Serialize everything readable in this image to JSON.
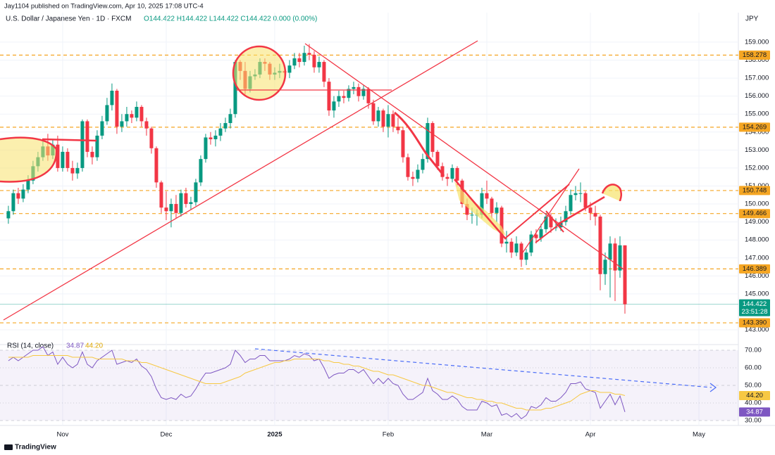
{
  "header": "Jay1104 published on TradingView.com, Apr 10, 2025 17:08 UTC-4",
  "footer": "TradingView",
  "chart_data": [
    {
      "type": "candlestick",
      "title": "U.S. Dollar / Japanese Yen · 1D · FXCM",
      "ohlc_legend": "O144.422 H144.422 L144.422 C144.422 0.000 (0.00%)",
      "currency": "JPY",
      "up_color": "#089981",
      "down_color": "#f23645",
      "grid": true,
      "xlim": [
        -1.7,
        148
      ],
      "xticks": [
        {
          "value": 11,
          "label": "Nov"
        },
        {
          "value": 32,
          "label": "Dec"
        },
        {
          "value": 54,
          "label": "2025"
        },
        {
          "value": 77,
          "label": "Feb"
        },
        {
          "value": 97,
          "label": "Mar"
        },
        {
          "value": 118,
          "label": "Apr"
        },
        {
          "value": 140,
          "label": "May"
        }
      ],
      "ylim": [
        142.18,
        160.64
      ],
      "yticks": [
        {
          "value": 143,
          "label": "143.000"
        },
        {
          "value": 145,
          "label": "145.000"
        },
        {
          "value": 146,
          "label": "146.000"
        },
        {
          "value": 147,
          "label": "147.000"
        },
        {
          "value": 148,
          "label": "148.000"
        },
        {
          "value": 149,
          "label": "149.000"
        },
        {
          "value": 150,
          "label": "150.000"
        },
        {
          "value": 151,
          "label": "151.000"
        },
        {
          "value": 152,
          "label": "152.000"
        },
        {
          "value": 153,
          "label": "153.000"
        },
        {
          "value": 154,
          "label": "154.000"
        },
        {
          "value": 155,
          "label": "155.000"
        },
        {
          "value": 156,
          "label": "156.000"
        },
        {
          "value": 157,
          "label": "157.000"
        },
        {
          "value": 158,
          "label": "158.000"
        },
        {
          "value": 159,
          "label": "159.000"
        }
      ],
      "level_color": "#f5a623",
      "levels": [
        {
          "value": 158.278,
          "label": "158.278"
        },
        {
          "value": 154.269,
          "label": "154.269"
        },
        {
          "value": 150.748,
          "label": "150.748"
        },
        {
          "value": 149.466,
          "label": "149.466"
        },
        {
          "value": 146.389,
          "label": "146.389"
        },
        {
          "value": 143.39,
          "label": "143.390"
        }
      ],
      "last_price": {
        "value": 144.422,
        "label": "144.422",
        "countdown": "23:51:28"
      },
      "ohlc": [
        [
          149.2,
          149.9,
          148.9,
          149.6
        ],
        [
          149.6,
          150.8,
          149.4,
          150.6
        ],
        [
          150.6,
          150.9,
          150.0,
          150.3
        ],
        [
          150.3,
          151.1,
          150.1,
          150.8
        ],
        [
          150.8,
          151.6,
          150.6,
          151.3
        ],
        [
          151.3,
          152.4,
          151.1,
          152.1
        ],
        [
          152.1,
          152.9,
          151.8,
          152.6
        ],
        [
          152.6,
          153.5,
          152.4,
          153.2
        ],
        [
          153.2,
          153.9,
          152.4,
          152.7
        ],
        [
          152.7,
          153.6,
          152.5,
          153.3
        ],
        [
          153.3,
          153.8,
          151.8,
          152.0
        ],
        [
          152.0,
          153.2,
          151.8,
          152.9
        ],
        [
          152.9,
          153.1,
          151.8,
          152.0
        ],
        [
          152.0,
          152.4,
          151.3,
          151.7
        ],
        [
          151.7,
          152.3,
          151.4,
          152.0
        ],
        [
          152.0,
          154.7,
          151.8,
          154.6
        ],
        [
          154.6,
          154.7,
          152.6,
          152.9
        ],
        [
          152.9,
          153.2,
          152.2,
          152.6
        ],
        [
          152.6,
          154.1,
          152.4,
          153.8
        ],
        [
          153.8,
          154.9,
          153.6,
          154.6
        ],
        [
          154.6,
          155.9,
          154.4,
          155.5
        ],
        [
          155.5,
          156.7,
          155.2,
          156.3
        ],
        [
          156.3,
          156.4,
          153.9,
          154.3
        ],
        [
          154.3,
          155.0,
          154.0,
          154.6
        ],
        [
          154.6,
          155.4,
          154.3,
          155.0
        ],
        [
          155.0,
          155.2,
          154.5,
          154.8
        ],
        [
          154.8,
          155.7,
          154.6,
          155.4
        ],
        [
          155.4,
          155.5,
          154.3,
          154.6
        ],
        [
          154.6,
          154.8,
          153.8,
          154.2
        ],
        [
          154.2,
          154.3,
          152.8,
          153.1
        ],
        [
          153.1,
          153.2,
          150.9,
          151.2
        ],
        [
          151.2,
          151.3,
          149.5,
          149.8
        ],
        [
          149.8,
          150.7,
          149.1,
          149.6
        ],
        [
          149.6,
          150.3,
          148.7,
          150.0
        ],
        [
          150.0,
          150.5,
          149.2,
          149.5
        ],
        [
          149.5,
          150.8,
          149.3,
          150.6
        ],
        [
          150.6,
          150.9,
          149.8,
          150.0
        ],
        [
          150.0,
          150.4,
          149.7,
          150.1
        ],
        [
          150.1,
          151.4,
          149.9,
          151.2
        ],
        [
          151.2,
          152.7,
          151.0,
          152.5
        ],
        [
          152.5,
          153.9,
          152.3,
          153.7
        ],
        [
          153.7,
          154.0,
          153.3,
          153.6
        ],
        [
          153.6,
          154.1,
          153.2,
          153.8
        ],
        [
          153.8,
          154.5,
          153.5,
          154.2
        ],
        [
          154.2,
          154.8,
          154.0,
          154.5
        ],
        [
          154.5,
          155.3,
          154.2,
          155.0
        ],
        [
          155.0,
          158.0,
          154.8,
          157.9
        ],
        [
          157.9,
          158.0,
          156.9,
          157.4
        ],
        [
          157.4,
          157.9,
          156.1,
          156.4
        ],
        [
          156.4,
          157.4,
          156.2,
          157.1
        ],
        [
          157.1,
          157.5,
          156.9,
          157.2
        ],
        [
          157.2,
          158.1,
          157.0,
          157.9
        ],
        [
          157.9,
          158.1,
          157.4,
          157.8
        ],
        [
          157.8,
          157.9,
          156.9,
          157.2
        ],
        [
          157.2,
          157.6,
          156.9,
          157.3
        ],
        [
          157.3,
          157.8,
          157.0,
          157.4
        ],
        [
          157.4,
          157.6,
          156.9,
          157.3
        ],
        [
          157.3,
          158.0,
          157.0,
          157.7
        ],
        [
          157.7,
          158.4,
          157.5,
          158.1
        ],
        [
          158.1,
          158.4,
          157.6,
          157.9
        ],
        [
          157.9,
          158.8,
          157.7,
          158.4
        ],
        [
          158.4,
          158.9,
          158.0,
          158.3
        ],
        [
          158.3,
          158.5,
          157.3,
          157.6
        ],
        [
          157.6,
          158.2,
          157.3,
          157.9
        ],
        [
          157.9,
          158.0,
          156.5,
          156.8
        ],
        [
          156.8,
          157.0,
          154.9,
          155.2
        ],
        [
          155.2,
          156.0,
          154.8,
          155.7
        ],
        [
          155.7,
          156.3,
          155.4,
          156.0
        ],
        [
          156.0,
          156.3,
          155.6,
          155.9
        ],
        [
          155.9,
          156.6,
          155.7,
          156.4
        ],
        [
          156.4,
          156.8,
          156.1,
          156.5
        ],
        [
          156.5,
          156.7,
          155.7,
          156.0
        ],
        [
          156.0,
          156.6,
          155.8,
          156.4
        ],
        [
          156.4,
          156.5,
          155.3,
          155.6
        ],
        [
          155.6,
          155.8,
          154.4,
          154.6
        ],
        [
          154.6,
          155.4,
          154.3,
          155.2
        ],
        [
          155.2,
          155.3,
          154.0,
          154.3
        ],
        [
          154.3,
          155.5,
          153.7,
          155.0
        ],
        [
          155.0,
          155.2,
          154.0,
          154.3
        ],
        [
          154.3,
          154.8,
          153.9,
          154.1
        ],
        [
          154.1,
          154.3,
          152.3,
          152.6
        ],
        [
          152.6,
          152.8,
          151.3,
          151.5
        ],
        [
          151.5,
          151.8,
          151.0,
          151.4
        ],
        [
          151.4,
          152.2,
          151.2,
          151.9
        ],
        [
          151.9,
          152.8,
          151.7,
          152.5
        ],
        [
          152.5,
          154.8,
          152.3,
          154.5
        ],
        [
          154.5,
          154.6,
          152.6,
          152.9
        ],
        [
          152.9,
          153.0,
          151.9,
          152.1
        ],
        [
          152.1,
          152.3,
          151.3,
          151.5
        ],
        [
          151.5,
          151.7,
          151.0,
          151.4
        ],
        [
          151.4,
          152.2,
          151.2,
          152.0
        ],
        [
          152.0,
          152.1,
          151.0,
          151.3
        ],
        [
          151.3,
          151.4,
          149.8,
          150.0
        ],
        [
          150.0,
          150.3,
          149.1,
          149.4
        ],
        [
          149.4,
          149.8,
          148.9,
          149.4
        ],
        [
          149.4,
          149.7,
          148.8,
          149.4
        ],
        [
          149.4,
          150.9,
          149.2,
          150.6
        ],
        [
          150.6,
          151.3,
          150.0,
          150.3
        ],
        [
          150.3,
          150.4,
          149.2,
          149.5
        ],
        [
          149.5,
          150.1,
          149.0,
          149.8
        ],
        [
          149.8,
          149.9,
          147.6,
          147.8
        ],
        [
          147.8,
          148.5,
          147.3,
          147.9
        ],
        [
          147.9,
          148.1,
          147.0,
          147.3
        ],
        [
          147.3,
          148.2,
          147.1,
          147.8
        ],
        [
          147.8,
          147.9,
          146.5,
          146.9
        ],
        [
          146.9,
          147.5,
          146.6,
          147.3
        ],
        [
          147.3,
          148.5,
          147.1,
          148.3
        ],
        [
          148.3,
          148.6,
          147.8,
          148.1
        ],
        [
          148.1,
          148.9,
          147.9,
          148.6
        ],
        [
          148.6,
          149.5,
          148.4,
          149.3
        ],
        [
          149.3,
          149.5,
          148.4,
          148.7
        ],
        [
          148.7,
          149.2,
          148.5,
          148.7
        ],
        [
          148.7,
          149.3,
          148.5,
          149.0
        ],
        [
          149.0,
          149.9,
          148.8,
          149.6
        ],
        [
          149.6,
          150.8,
          149.4,
          150.5
        ],
        [
          150.5,
          151.0,
          150.2,
          150.6
        ],
        [
          150.6,
          151.2,
          150.1,
          150.6
        ],
        [
          150.6,
          150.7,
          149.6,
          149.8
        ],
        [
          149.8,
          150.1,
          149.1,
          149.5
        ],
        [
          149.5,
          149.9,
          148.8,
          149.3
        ],
        [
          149.3,
          149.4,
          145.2,
          146.1
        ],
        [
          146.1,
          147.3,
          145.5,
          146.9
        ],
        [
          146.9,
          148.2,
          144.8,
          147.8
        ],
        [
          147.8,
          148.1,
          144.6,
          146.3
        ],
        [
          146.3,
          148.2,
          145.9,
          147.7
        ],
        [
          147.7,
          147.7,
          143.9,
          144.422
        ]
      ]
    },
    {
      "type": "line",
      "title": "RSI (14, close)",
      "ylim": [
        27.2,
        73.2
      ],
      "yticks": [
        {
          "value": 30,
          "label": "30.00"
        },
        {
          "value": 40,
          "label": "40.00"
        },
        {
          "value": 50,
          "label": "50.00"
        },
        {
          "value": 60,
          "label": "60.00"
        },
        {
          "value": 70,
          "label": "70.00"
        }
      ],
      "band": [
        30,
        70
      ],
      "series": [
        {
          "color": "#7e57c2",
          "last_label": "34.87",
          "values": [
            64,
            66,
            64,
            66,
            68,
            70,
            70,
            72,
            67,
            69,
            62,
            66,
            62,
            60,
            62,
            69,
            62,
            60,
            64,
            66,
            68,
            70,
            62,
            63,
            64,
            63,
            65,
            61,
            59,
            55,
            48,
            43,
            42,
            43,
            42,
            45,
            43,
            44,
            48,
            53,
            57,
            57,
            58,
            59,
            60,
            62,
            70,
            67,
            63,
            65,
            65,
            67,
            67,
            64,
            64,
            64,
            64,
            65,
            67,
            66,
            68,
            67,
            64,
            65,
            60,
            54,
            56,
            57,
            57,
            59,
            59,
            57,
            59,
            55,
            51,
            54,
            51,
            54,
            51,
            50,
            45,
            42,
            42,
            44,
            46,
            54,
            47,
            45,
            42,
            42,
            44,
            42,
            38,
            36,
            36,
            36,
            41,
            40,
            38,
            39,
            33,
            34,
            32,
            34,
            31,
            33,
            38,
            37,
            39,
            43,
            41,
            41,
            43,
            46,
            51,
            51,
            52,
            48,
            47,
            46,
            37,
            41,
            45,
            39,
            44,
            34.87
          ]
        },
        {
          "color": "#f7c843",
          "last_label": "44.20",
          "values": [
            66,
            66,
            66,
            66,
            66,
            67,
            67,
            67,
            67,
            67,
            67,
            67,
            67,
            66,
            66,
            66,
            66,
            66,
            65,
            65,
            65,
            65,
            65,
            65,
            64,
            64,
            64,
            63,
            63,
            62,
            61,
            60,
            59,
            58,
            57,
            56,
            55,
            54,
            53,
            52,
            51,
            51,
            51,
            51,
            52,
            53,
            54,
            55,
            57,
            58,
            59,
            60,
            61,
            62,
            63,
            63,
            64,
            64,
            65,
            65,
            65,
            65,
            65,
            65,
            64,
            64,
            63,
            63,
            62,
            62,
            61,
            61,
            60,
            59,
            58,
            58,
            57,
            56,
            56,
            55,
            54,
            53,
            52,
            51,
            50,
            50,
            49,
            48,
            47,
            46,
            46,
            45,
            44,
            43,
            43,
            42,
            42,
            41,
            41,
            40,
            40,
            39,
            38,
            37,
            37,
            36,
            36,
            36,
            36,
            37,
            37,
            38,
            39,
            40,
            41,
            43,
            45,
            46,
            47,
            47,
            46,
            46,
            46,
            45,
            45,
            44.2
          ]
        }
      ]
    }
  ]
}
